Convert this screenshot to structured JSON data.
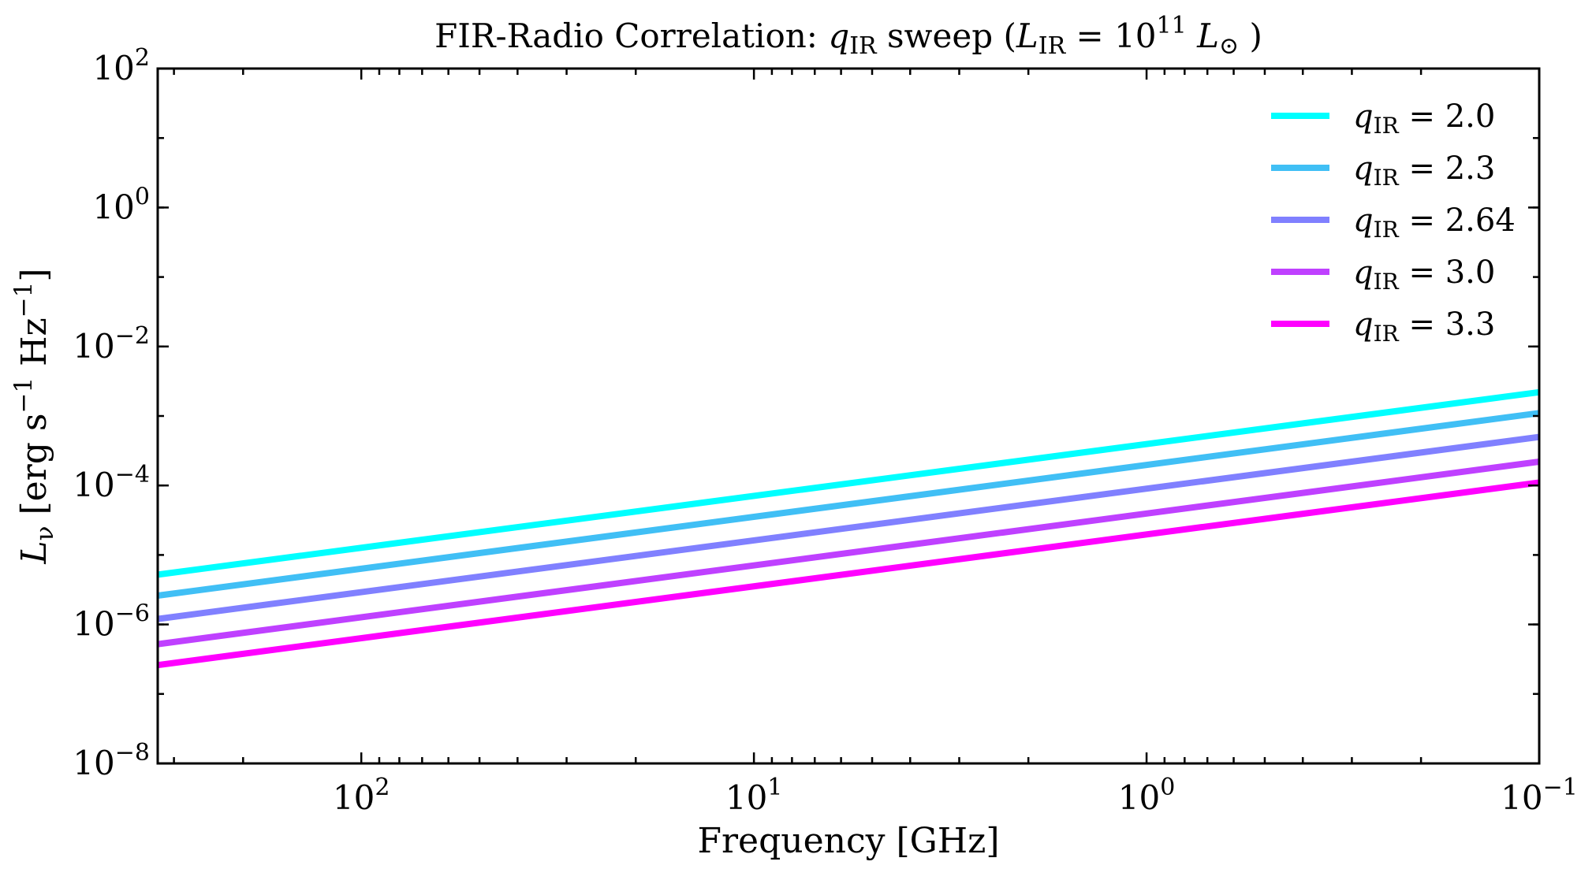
{
  "chart_data": {
    "type": "line",
    "title": {
      "prefix": "FIR-Radio Correlation: ",
      "q_symbol": "q",
      "q_subscript": "IR",
      "middle": " sweep (",
      "L_symbol": "L",
      "L_subscript": "IR",
      "equals": " = 10",
      "exponent": "11",
      "unit": " L",
      "unit_subscript": "⊙",
      "suffix": " )"
    },
    "xlabel": "Frequency [GHz]",
    "ylabel": {
      "symbol": "L",
      "subscript": "ν",
      "unit_prefix": " [erg s",
      "exp1": "−1",
      "unit_mid": " Hz",
      "exp2": "−1",
      "unit_suffix": "]"
    },
    "x_scale": "log",
    "y_scale": "log",
    "x_direction": "reversed",
    "xlim": [
      330,
      0.1
    ],
    "ylim": [
      1e-08,
      100
    ],
    "x_ticks": [
      {
        "value": 100,
        "base": "10",
        "exp": "2"
      },
      {
        "value": 10,
        "base": "10",
        "exp": "1"
      },
      {
        "value": 1,
        "base": "10",
        "exp": "0"
      },
      {
        "value": 0.1,
        "base": "10",
        "exp": "−1"
      }
    ],
    "y_ticks": [
      {
        "value": 100,
        "base": "10",
        "exp": "2"
      },
      {
        "value": 1,
        "base": "10",
        "exp": "0"
      },
      {
        "value": 0.01,
        "base": "10",
        "exp": "−2"
      },
      {
        "value": 0.0001,
        "base": "10",
        "exp": "−4"
      },
      {
        "value": 1e-06,
        "base": "10",
        "exp": "−6"
      },
      {
        "value": 1e-08,
        "base": "10",
        "exp": "−8"
      }
    ],
    "grid": false,
    "legend_position": "top-right",
    "series": [
      {
        "name_symbol": "q",
        "name_subscript": "IR",
        "name_value": " = 2.0",
        "color": "#00ffff",
        "x": [
          330,
          0.1
        ],
        "y": [
          5.2e-06,
          0.0022
        ]
      },
      {
        "name_symbol": "q",
        "name_subscript": "IR",
        "name_value": " = 2.3",
        "color": "#40bff5",
        "x": [
          330,
          0.1
        ],
        "y": [
          2.6e-06,
          0.0011
        ]
      },
      {
        "name_symbol": "q",
        "name_subscript": "IR",
        "name_value": " = 2.64",
        "color": "#8080ff",
        "x": [
          330,
          0.1
        ],
        "y": [
          1.2e-06,
          0.0005
        ]
      },
      {
        "name_symbol": "q",
        "name_subscript": "IR",
        "name_value": " = 3.0",
        "color": "#bf40ff",
        "x": [
          330,
          0.1
        ],
        "y": [
          5.2e-07,
          0.00022
        ]
      },
      {
        "name_symbol": "q",
        "name_subscript": "IR",
        "name_value": " = 3.3",
        "color": "#ff00ff",
        "x": [
          330,
          0.1
        ],
        "y": [
          2.6e-07,
          0.00011
        ]
      }
    ]
  }
}
